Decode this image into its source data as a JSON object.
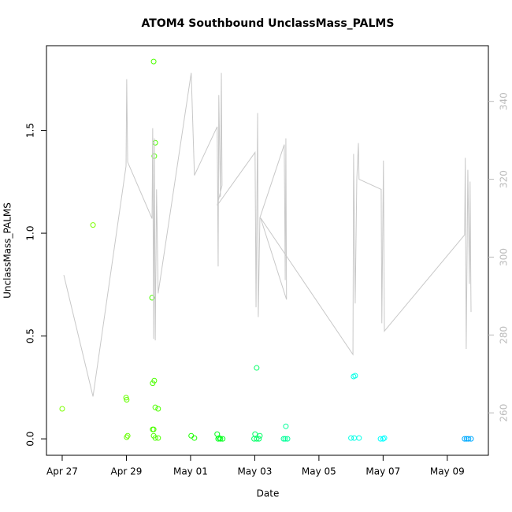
{
  "chart_data": {
    "type": "scatter",
    "title": "ATOM4 Southbound UnclassMass_PALMS",
    "x_label": "Date",
    "y_label": "UnclassMass_PALMS",
    "xlim": [
      -0.49,
      13.28
    ],
    "ylim": [
      -0.08,
      1.912
    ],
    "y2lim": [
      249.1,
      354.3
    ],
    "xticks": [
      {
        "value": 0,
        "label": "Apr 27"
      },
      {
        "value": 2,
        "label": "Apr 29"
      },
      {
        "value": 4,
        "label": "May 01"
      },
      {
        "value": 6,
        "label": "May 03"
      },
      {
        "value": 8,
        "label": "May 05"
      },
      {
        "value": 10,
        "label": "May 07"
      },
      {
        "value": 12,
        "label": "May 09"
      }
    ],
    "yticks": [
      {
        "value": 0,
        "label": "0.0"
      },
      {
        "value": 0.5,
        "label": "0.5"
      },
      {
        "value": 1,
        "label": "1.0"
      },
      {
        "value": 1.5,
        "label": "1.5"
      }
    ],
    "y2ticks": [
      260,
      280,
      300,
      320,
      340
    ],
    "y2tick_color": "#bbbbbb",
    "series": [
      {
        "type": "scatter",
        "x": [
          0.0,
          0.96,
          1.99,
          2.01,
          2.04,
          2.01,
          2.85,
          2.8,
          2.82,
          2.87,
          2.9,
          2.87,
          2.82,
          2.85,
          2.9,
          2.99,
          2.85,
          2.9,
          2.99,
          4.02,
          4.12,
          4.83,
          4.86,
          4.93,
          5.0,
          4.9,
          6.06,
          6.01,
          6.16,
          5.98,
          6.06,
          6.13,
          6.97,
          6.9,
          6.95,
          7.02,
          9.13,
          9.08,
          9.0,
          9.1,
          9.25,
          9.92,
          10.0,
          10.04,
          12.54,
          12.6,
          12.66,
          12.74
        ],
        "values": [
          0.146,
          1.04,
          0.2,
          0.19,
          0.015,
          0.008,
          1.835,
          0.686,
          0.27,
          0.283,
          1.44,
          1.375,
          0.046,
          0.046,
          0.153,
          0.146,
          0.015,
          0.004,
          0.004,
          0.015,
          0.004,
          0.023,
          0.0,
          0.0,
          0.0,
          0.004,
          0.345,
          0.023,
          0.015,
          0.0,
          0.0,
          0.0,
          0.061,
          0.0,
          0.0,
          0.0,
          0.307,
          0.303,
          0.004,
          0.004,
          0.004,
          0.0,
          0.0,
          0.004,
          0.0,
          0.0,
          0.0,
          0.0
        ],
        "colors": [
          "#7cff00",
          "#7cff00",
          "#66ff00",
          "#66ff00",
          "#66ff00",
          "#66ff00",
          "#4dff00",
          "#4dff00",
          "#4dff00",
          "#4dff00",
          "#4dff00",
          "#4dff00",
          "#4dff00",
          "#4dff00",
          "#4dff00",
          "#4dff00",
          "#4dff00",
          "#4dff00",
          "#4dff00",
          "#1aff00",
          "#1aff00",
          "#00ff1a",
          "#00ff1a",
          "#00ff1a",
          "#00ff1a",
          "#00ff1a",
          "#00ff66",
          "#00ff66",
          "#00ff66",
          "#00ff66",
          "#00ff66",
          "#00ff66",
          "#00ff99",
          "#00ff99",
          "#00ff99",
          "#00ff99",
          "#00ffe6",
          "#00ffe6",
          "#00ffe6",
          "#00ffe6",
          "#00ffe6",
          "#00ffff",
          "#00ffff",
          "#00ffff",
          "#00aaff",
          "#00aaff",
          "#00aaff",
          "#00aaff"
        ]
      },
      {
        "type": "line",
        "axis": "y2",
        "color": "#c8c8c8",
        "x": [
          0.05,
          0.96,
          1.99,
          2.01,
          2.04,
          2.8,
          2.82,
          2.85,
          2.87,
          2.9,
          2.94,
          2.99,
          4.02,
          4.12,
          4.83,
          4.86,
          4.88,
          4.93,
          4.96,
          4.98,
          4.83,
          6.01,
          6.04,
          6.09,
          6.11,
          6.16,
          6.92,
          6.95,
          6.97,
          6.99,
          6.18,
          9.06,
          9.08,
          9.13,
          9.18,
          9.23,
          9.25,
          9.94,
          9.96,
          10.01,
          10.04,
          12.54,
          12.56,
          12.59,
          12.64,
          12.69,
          12.71,
          12.74
        ],
        "values": [
          295.4,
          264.2,
          323.4,
          345.7,
          324.4,
          309.9,
          333.1,
          279.0,
          330.5,
          278.6,
          317.4,
          290.7,
          347.3,
          321.0,
          333.5,
          297.6,
          341.6,
          315.4,
          347.3,
          318.4,
          313.3,
          326.9,
          287.1,
          337.0,
          284.6,
          310.1,
          328.9,
          294.1,
          330.5,
          289.1,
          310.1,
          275.0,
          326.5,
          288.1,
          320.0,
          329.3,
          320.0,
          317.4,
          283.0,
          324.8,
          281.0,
          305.7,
          325.5,
          276.4,
          322.4,
          293.1,
          319.4,
          285.9
        ]
      }
    ]
  }
}
